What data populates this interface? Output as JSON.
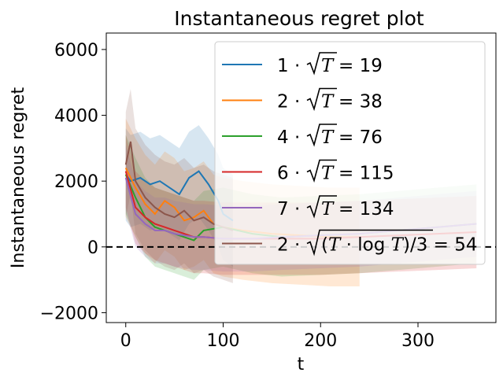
{
  "chart_data": {
    "type": "line",
    "title": "Instantaneous regret plot",
    "xlabel": "t",
    "ylabel": "Instantaneous regret",
    "xlim": [
      -20,
      380
    ],
    "ylim": [
      -2300,
      6500
    ],
    "xticks": [
      0,
      100,
      200,
      300
    ],
    "yticks": [
      -2000,
      0,
      2000,
      4000,
      6000
    ],
    "xtick_labels": [
      "0",
      "100",
      "200",
      "300"
    ],
    "ytick_labels": [
      "−2000",
      "0",
      "2000",
      "4000",
      "6000"
    ],
    "reference_line": {
      "y": 0,
      "style": "dashed",
      "color": "#000000"
    },
    "grid": false,
    "legend_position": "upper-right",
    "series": [
      {
        "name": "1·√T = 19",
        "legend_prefix": "1",
        "legend_value": "19",
        "legend_expr": "sqrtT",
        "color": "#1f77b4",
        "x": [
          0,
          5,
          15,
          25,
          35,
          45,
          55,
          65,
          75,
          85,
          95,
          100,
          110
        ],
        "values": [
          2200,
          2000,
          2100,
          1900,
          2000,
          1800,
          1600,
          2100,
          2300,
          1900,
          1400,
          1000,
          800
        ],
        "band_halfwidth": 1400
      },
      {
        "name": "2·√T = 38",
        "legend_prefix": "2",
        "legend_value": "38",
        "legend_expr": "sqrtT",
        "color": "#ff7f0e",
        "x": [
          0,
          10,
          20,
          30,
          40,
          50,
          60,
          70,
          80,
          90,
          100,
          120,
          150,
          180,
          210,
          240
        ],
        "values": [
          2400,
          1800,
          1300,
          1000,
          1400,
          1200,
          800,
          900,
          1100,
          700,
          600,
          500,
          400,
          350,
          300,
          300
        ],
        "band_halfwidth": 1500
      },
      {
        "name": "4·√T = 76",
        "legend_prefix": "4",
        "legend_value": "76",
        "legend_expr": "sqrtT",
        "color": "#2ca02c",
        "x": [
          0,
          10,
          20,
          30,
          40,
          50,
          60,
          70,
          80,
          100,
          130,
          160,
          200,
          240,
          280,
          320,
          360
        ],
        "values": [
          2200,
          1500,
          900,
          600,
          500,
          400,
          300,
          200,
          500,
          600,
          400,
          300,
          350,
          400,
          500,
          600,
          700
        ],
        "band_halfwidth": 1200
      },
      {
        "name": "6·√T = 115",
        "legend_prefix": "6",
        "legend_value": "115",
        "legend_expr": "sqrtT",
        "color": "#d62728",
        "x": [
          0,
          10,
          20,
          30,
          40,
          50,
          60,
          70,
          80,
          100,
          130,
          160,
          200,
          240,
          280,
          320,
          360
        ],
        "values": [
          2300,
          1200,
          900,
          700,
          600,
          500,
          400,
          300,
          300,
          250,
          250,
          250,
          250,
          300,
          350,
          400,
          450
        ],
        "band_halfwidth": 1100
      },
      {
        "name": "7·√T = 134",
        "legend_prefix": "7",
        "legend_value": "134",
        "legend_expr": "sqrtT",
        "color": "#9467bd",
        "x": [
          0,
          10,
          20,
          30,
          40,
          50,
          60,
          70,
          80,
          100,
          130,
          160,
          200,
          240,
          280,
          320,
          360
        ],
        "values": [
          2100,
          1000,
          700,
          500,
          500,
          400,
          350,
          300,
          300,
          250,
          250,
          300,
          350,
          400,
          500,
          600,
          700
        ],
        "band_halfwidth": 1000
      },
      {
        "name": "2·√((T·log T)/3) = 54",
        "legend_prefix": "2",
        "legend_value": "54",
        "legend_expr": "sqrtTlogT3",
        "color": "#8c564b",
        "x": [
          0,
          5,
          10,
          20,
          30,
          40,
          50,
          60,
          70,
          80,
          90,
          100,
          110
        ],
        "values": [
          2500,
          3200,
          2000,
          1500,
          1200,
          1000,
          900,
          1100,
          800,
          900,
          700,
          600,
          500
        ],
        "band_halfwidth": 1600
      }
    ]
  }
}
